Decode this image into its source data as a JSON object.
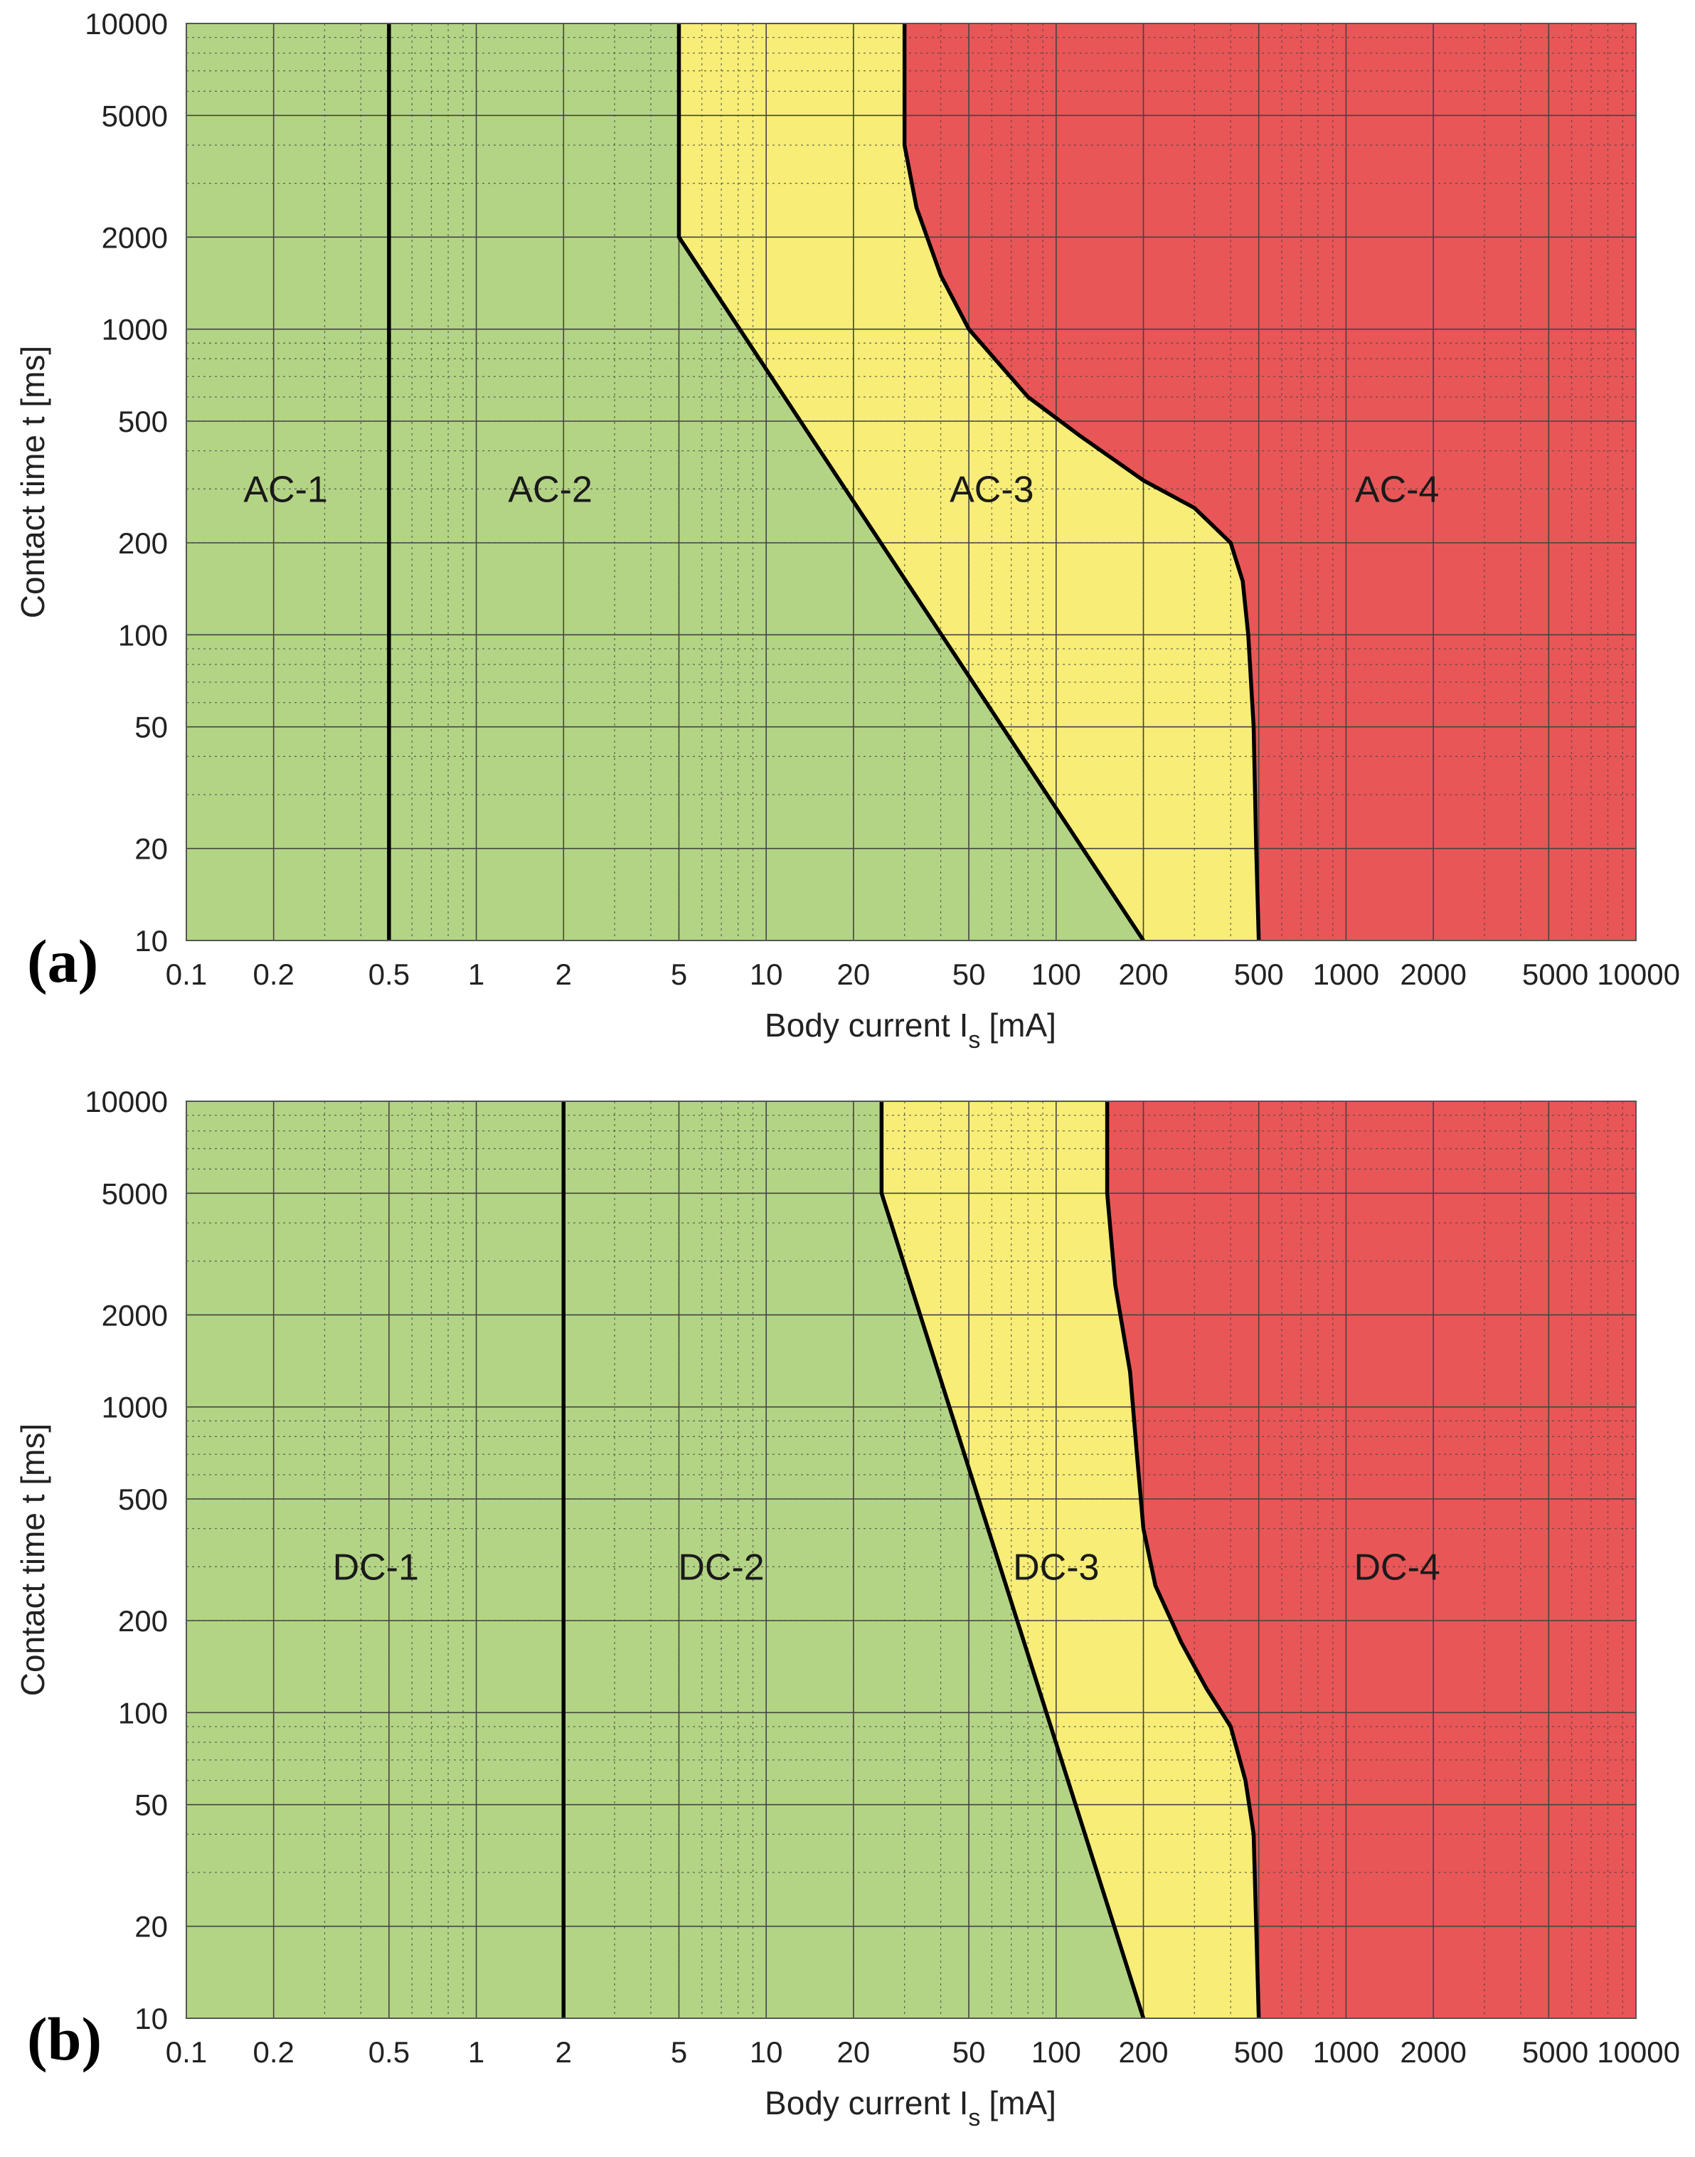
{
  "chart_data": [
    {
      "type": "area",
      "panel_label": "(a)",
      "xlabel": "Body current I",
      "xlabel_subscript": "s",
      "xlabel_unit": "[mA]",
      "ylabel": "Contact time t [ms]",
      "x_scale": "log",
      "y_scale": "log",
      "xlim": [
        0.1,
        10000
      ],
      "ylim": [
        10,
        10000
      ],
      "grid": true,
      "x_ticks": [
        0.1,
        0.2,
        0.5,
        1,
        2,
        5,
        10,
        20,
        50,
        100,
        200,
        500,
        1000,
        2000,
        5000,
        10000
      ],
      "x_tick_labels": [
        "0.1",
        "0.2",
        "0.5",
        "1",
        "2",
        "5",
        "10",
        "20",
        "50",
        "100",
        "200",
        "500",
        "1000",
        "2000",
        "5000",
        "10000"
      ],
      "y_ticks": [
        10,
        20,
        50,
        100,
        200,
        500,
        1000,
        2000,
        5000,
        10000
      ],
      "y_tick_labels": [
        "10",
        "20",
        "50",
        "100",
        "200",
        "500",
        "1000",
        "2000",
        "5000",
        "10000"
      ],
      "zone_colors": [
        "#b3d485",
        "#b3d485",
        "#f7ed77",
        "#e85657"
      ],
      "zone_labels": [
        {
          "text": "AC-1",
          "x": 0.22,
          "y": 300
        },
        {
          "text": "AC-2",
          "x": 1.8,
          "y": 300
        },
        {
          "text": "AC-3",
          "x": 60,
          "y": 300
        },
        {
          "text": "AC-4",
          "x": 1500,
          "y": 300
        }
      ],
      "boundaries": [
        {
          "name": "AC-1/AC-2",
          "points": [
            [
              0.5,
              10
            ],
            [
              0.5,
              10000
            ]
          ]
        },
        {
          "name": "AC-2/AC-3",
          "points": [
            [
              200,
              10
            ],
            [
              5,
              2000
            ],
            [
              5,
              10000
            ]
          ]
        },
        {
          "name": "AC-3/AC-4",
          "points": [
            [
              500,
              10
            ],
            [
              490,
              20
            ],
            [
              480,
              50
            ],
            [
              460,
              100
            ],
            [
              440,
              150
            ],
            [
              400,
              200
            ],
            [
              300,
              260
            ],
            [
              200,
              320
            ],
            [
              120,
              450
            ],
            [
              80,
              600
            ],
            [
              50,
              1000
            ],
            [
              40,
              1500
            ],
            [
              33,
              2500
            ],
            [
              30,
              4000
            ],
            [
              30,
              10000
            ]
          ]
        }
      ]
    },
    {
      "type": "area",
      "panel_label": "(b)",
      "xlabel": "Body current I",
      "xlabel_subscript": "s",
      "xlabel_unit": "[mA]",
      "ylabel": "Contact time t [ms]",
      "x_scale": "log",
      "y_scale": "log",
      "xlim": [
        0.1,
        10000
      ],
      "ylim": [
        10,
        10000
      ],
      "grid": true,
      "x_ticks": [
        0.1,
        0.2,
        0.5,
        1,
        2,
        5,
        10,
        20,
        50,
        100,
        200,
        500,
        1000,
        2000,
        5000,
        10000
      ],
      "x_tick_labels": [
        "0.1",
        "0.2",
        "0.5",
        "1",
        "2",
        "5",
        "10",
        "20",
        "50",
        "100",
        "200",
        "500",
        "1000",
        "2000",
        "5000",
        "10000"
      ],
      "y_ticks": [
        10,
        20,
        50,
        100,
        200,
        500,
        1000,
        2000,
        5000,
        10000
      ],
      "y_tick_labels": [
        "10",
        "20",
        "50",
        "100",
        "200",
        "500",
        "1000",
        "2000",
        "5000",
        "10000"
      ],
      "zone_colors": [
        "#b3d485",
        "#b3d485",
        "#f7ed77",
        "#e85657"
      ],
      "zone_labels": [
        {
          "text": "DC-1",
          "x": 0.45,
          "y": 300
        },
        {
          "text": "DC-2",
          "x": 7,
          "y": 300
        },
        {
          "text": "DC-3",
          "x": 100,
          "y": 300
        },
        {
          "text": "DC-4",
          "x": 1500,
          "y": 300
        }
      ],
      "boundaries": [
        {
          "name": "DC-1/DC-2",
          "points": [
            [
              2,
              10
            ],
            [
              2,
              10000
            ]
          ]
        },
        {
          "name": "DC-2/DC-3",
          "points": [
            [
              200,
              10
            ],
            [
              25,
              5000
            ],
            [
              25,
              10000
            ]
          ]
        },
        {
          "name": "DC-3/DC-4",
          "points": [
            [
              500,
              10
            ],
            [
              490,
              20
            ],
            [
              480,
              40
            ],
            [
              450,
              60
            ],
            [
              400,
              90
            ],
            [
              330,
              120
            ],
            [
              270,
              170
            ],
            [
              220,
              260
            ],
            [
              200,
              400
            ],
            [
              190,
              700
            ],
            [
              180,
              1300
            ],
            [
              160,
              2500
            ],
            [
              150,
              5000
            ],
            [
              150,
              10000
            ]
          ]
        }
      ]
    }
  ]
}
